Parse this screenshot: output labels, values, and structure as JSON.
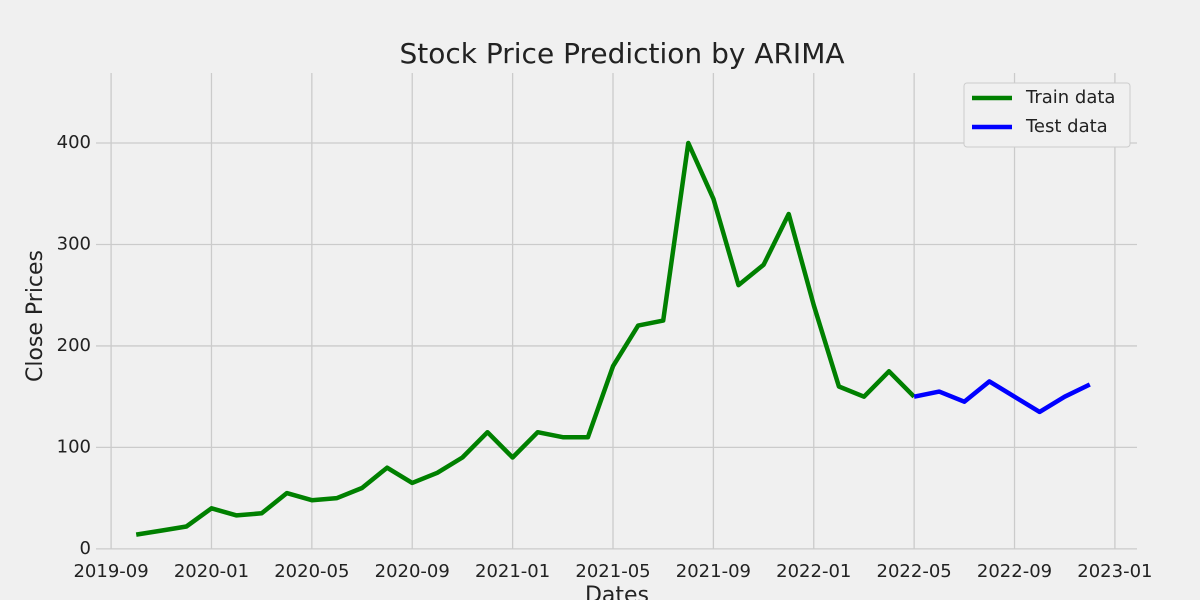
{
  "chart_data": {
    "type": "line",
    "title": "Stock Price Prediction by ARIMA",
    "x_label": "Dates",
    "y_label": "Close Prices",
    "x": [
      "2019-10",
      "2019-11",
      "2019-12",
      "2020-01",
      "2020-02",
      "2020-03",
      "2020-04",
      "2020-05",
      "2020-06",
      "2020-07",
      "2020-08",
      "2020-09",
      "2020-10",
      "2020-11",
      "2020-12",
      "2021-01",
      "2021-02",
      "2021-03",
      "2021-04",
      "2021-05",
      "2021-06",
      "2021-07",
      "2021-08",
      "2021-09",
      "2021-10",
      "2021-11",
      "2021-12",
      "2022-01",
      "2022-02",
      "2022-03",
      "2022-04",
      "2022-05",
      "2022-06",
      "2022-07",
      "2022-08",
      "2022-09",
      "2022-10",
      "2022-11",
      "2022-12"
    ],
    "series": [
      {
        "name": "Train data",
        "color": "#008000",
        "values": [
          14,
          18,
          22,
          40,
          33,
          35,
          55,
          48,
          50,
          60,
          80,
          65,
          75,
          90,
          115,
          90,
          115,
          110,
          110,
          180,
          220,
          225,
          400,
          345,
          260,
          280,
          330,
          240,
          160,
          150,
          175,
          150,
          null,
          null,
          null,
          null,
          null,
          null,
          null
        ]
      },
      {
        "name": "Test data",
        "color": "#0000ff",
        "values": [
          null,
          null,
          null,
          null,
          null,
          null,
          null,
          null,
          null,
          null,
          null,
          null,
          null,
          null,
          null,
          null,
          null,
          null,
          null,
          null,
          null,
          null,
          null,
          null,
          null,
          null,
          null,
          null,
          null,
          null,
          null,
          150,
          155,
          145,
          165,
          150,
          135,
          150,
          162
        ]
      }
    ],
    "xlim": [
      "2019-08",
      "2023-02"
    ],
    "xticks": [
      "2019-09",
      "2020-01",
      "2020-05",
      "2020-09",
      "2021-01",
      "2021-05",
      "2021-09",
      "2022-01",
      "2022-05",
      "2022-09",
      "2023-01"
    ],
    "ylim": [
      -10,
      469
    ],
    "yticks": [
      0,
      100,
      200,
      300,
      400
    ],
    "grid": true,
    "legend": "upper right"
  }
}
